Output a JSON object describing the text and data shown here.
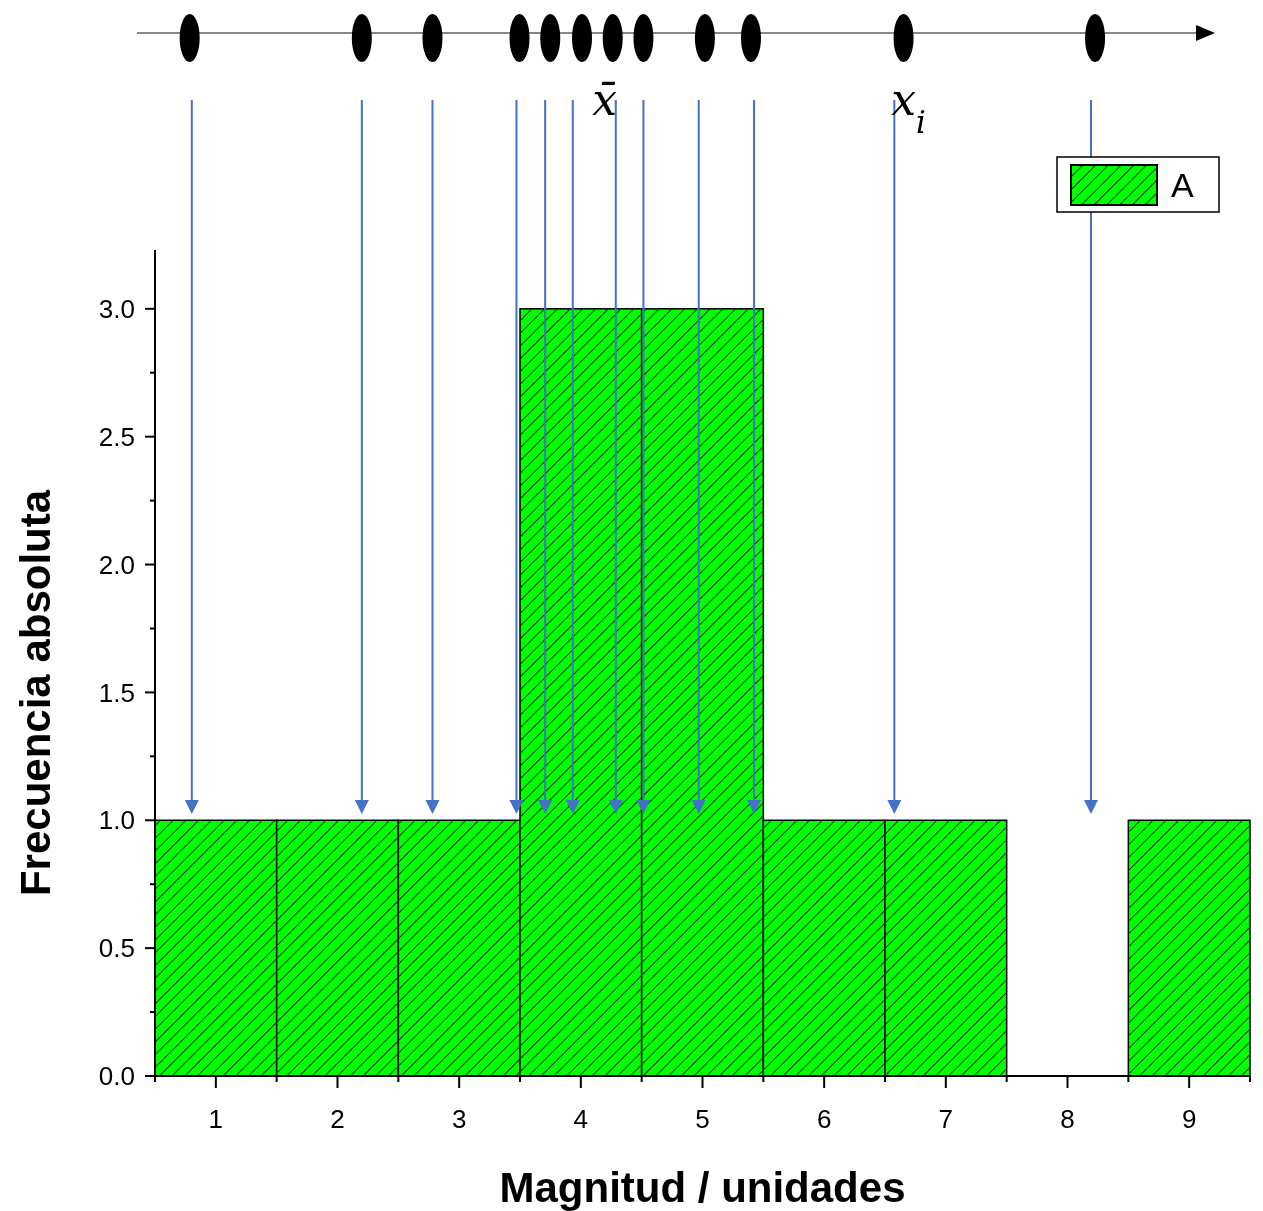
{
  "chart_data": {
    "type": "histogram",
    "xlabel": "Magnitud / unidades",
    "ylabel": "Frecuencia absoluta",
    "bins": [
      0.5,
      1.5,
      2.5,
      3.5,
      4.5,
      5.5,
      6.5,
      7.5,
      8.5,
      9.5
    ],
    "series": [
      {
        "name": "A",
        "color": "#00ff00",
        "values": [
          1,
          1,
          1,
          3,
          3,
          1,
          1,
          0,
          1
        ]
      }
    ],
    "xlim": [
      0.5,
      9.5
    ],
    "xticks": [
      {
        "value": 0.5,
        "label": null
      },
      1,
      {
        "value": 1.5,
        "label": null
      },
      2,
      {
        "value": 2.5,
        "label": null
      },
      3,
      {
        "value": 3.5,
        "label": null
      },
      4,
      {
        "value": 4.5,
        "label": null
      },
      5,
      {
        "value": 5.5,
        "label": null
      },
      6,
      {
        "value": 6.5,
        "label": null
      },
      7,
      {
        "value": 7.5,
        "label": null
      },
      8,
      {
        "value": 8.5,
        "label": null
      },
      9,
      {
        "value": 9.5,
        "label": null
      }
    ],
    "ylim": [
      0,
      3.23
    ],
    "yticks": [
      {
        "value": 0,
        "label": "0.0"
      },
      {
        "value": 0.25,
        "label": null
      },
      {
        "value": 0.5,
        "label": "0.5"
      },
      {
        "value": 0.75,
        "label": null
      },
      {
        "value": 1,
        "label": "1.0"
      },
      {
        "value": 1.25,
        "label": null
      },
      {
        "value": 1.5,
        "label": "1.5"
      },
      {
        "value": 1.75,
        "label": null
      },
      {
        "value": 2,
        "label": "2.0"
      },
      {
        "value": 2.25,
        "label": null
      },
      {
        "value": 2.5,
        "label": "2.5"
      },
      {
        "value": 2.75,
        "label": null
      },
      {
        "value": 3,
        "label": "3.0"
      }
    ],
    "legend": "top right",
    "grid": false,
    "annotations": [
      "x̄",
      "x$_{i}$"
    ]
  }
}
